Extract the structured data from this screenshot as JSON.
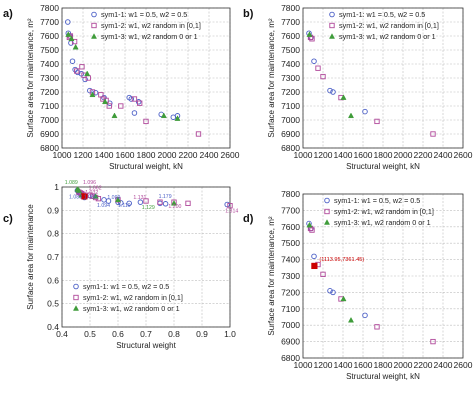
{
  "chart_data": [
    {
      "type": "scatter",
      "panel_label": "a)",
      "xlabel": "Structural weight, kN",
      "ylabel": "Surface area for maintenance, m²",
      "xlim": [
        1000,
        2600
      ],
      "ylim": [
        6800,
        7800
      ],
      "xticks": [
        "1000",
        "1200",
        "1400",
        "1600",
        "1800",
        "2000",
        "2200",
        "2400",
        "2600"
      ],
      "yticks": [
        "6800",
        "6900",
        "7000",
        "7100",
        "7200",
        "7300",
        "7400",
        "7500",
        "7600",
        "7700",
        "7800"
      ],
      "grid": true,
      "legend": "top-right",
      "series": [
        {
          "name": "sym1-1: w1 = 0.5, w2 = 0.5",
          "marker": "circle",
          "color": "#4a5ec6",
          "x": [
            1055,
            1060,
            1075,
            1085,
            1100,
            1125,
            1150,
            1185,
            1220,
            1265,
            1320,
            1400,
            1455,
            1640,
            1660,
            1690,
            1730,
            1945,
            2060,
            2100
          ],
          "y": [
            7700,
            7620,
            7600,
            7550,
            7420,
            7360,
            7340,
            7330,
            7290,
            7210,
            7195,
            7160,
            7120,
            7160,
            7150,
            7050,
            7130,
            7040,
            7020,
            7030
          ]
        },
        {
          "name": "sym1-2: w1, w2 random in [0,1]",
          "marker": "square",
          "color": "#b0489a",
          "x": [
            1070,
            1080,
            1120,
            1140,
            1190,
            1210,
            1250,
            1290,
            1370,
            1390,
            1420,
            1450,
            1560,
            1690,
            1740,
            1800,
            2300
          ],
          "y": [
            7590,
            7600,
            7560,
            7350,
            7380,
            7320,
            7300,
            7200,
            7180,
            7150,
            7140,
            7100,
            7100,
            7150,
            7120,
            6990,
            6900
          ]
        },
        {
          "name": "sym1-3: w1, w2 random 0 or 1",
          "marker": "triangle",
          "color": "#3f9c3a",
          "x": [
            1060,
            1090,
            1130,
            1240,
            1290,
            1410,
            1500,
            1970,
            2100
          ],
          "y": [
            7610,
            7580,
            7520,
            7330,
            7180,
            7130,
            7030,
            7030,
            7010
          ]
        }
      ]
    },
    {
      "type": "scatter",
      "panel_label": "b)",
      "xlabel": "Structural weight, kN",
      "ylabel": "Surface area for maintenance, m²",
      "xlim": [
        1000,
        2600
      ],
      "ylim": [
        6800,
        7800
      ],
      "xticks": [
        "1000",
        "1200",
        "1400",
        "1600",
        "1800",
        "2000",
        "2200",
        "2400",
        "2600"
      ],
      "yticks": [
        "6800",
        "6900",
        "7000",
        "7100",
        "7200",
        "7300",
        "7400",
        "7500",
        "7600",
        "7700",
        "7800"
      ],
      "grid": true,
      "legend": "top-right",
      "series": [
        {
          "name": "sym1-1: w1 = 0.5, w2 = 0.5",
          "marker": "circle",
          "color": "#4a5ec6",
          "x": [
            1060,
            1080,
            1110,
            1270,
            1300,
            1620
          ],
          "y": [
            7620,
            7590,
            7420,
            7210,
            7200,
            7060
          ]
        },
        {
          "name": "sym1-2: w1, w2 random in [0,1]",
          "marker": "square",
          "color": "#b0489a",
          "x": [
            1075,
            1090,
            1150,
            1200,
            1380,
            1740,
            2300
          ],
          "y": [
            7590,
            7580,
            7370,
            7310,
            7160,
            6990,
            6900
          ]
        },
        {
          "name": "sym1-3: w1, w2 random 0 or 1",
          "marker": "triangle",
          "color": "#3f9c3a",
          "x": [
            1065,
            1405,
            1480
          ],
          "y": [
            7610,
            7160,
            7030
          ]
        }
      ]
    },
    {
      "type": "scatter",
      "panel_label": "c)",
      "xlabel": "Structural weight",
      "ylabel": "Surface area for maintenance",
      "xlim": [
        0.4,
        1.0
      ],
      "ylim": [
        0.4,
        1.0
      ],
      "xticks": [
        "0.4",
        "0.5",
        "0.6",
        "0.7",
        "0.8",
        "0.9",
        "1.0"
      ],
      "yticks": [
        "0.4",
        "0.5",
        "0.6",
        "0.7",
        "0.8",
        "0.9",
        "1"
      ],
      "grid": true,
      "legend": "bottom-left",
      "series": [
        {
          "name": "sym1-1: w1 = 0.5, w2 = 0.5",
          "marker": "circle",
          "color": "#4a5ec6",
          "x": [
            0.455,
            0.458,
            0.46,
            0.462,
            0.468,
            0.475,
            0.48,
            0.55,
            0.566,
            0.6,
            0.61,
            0.64,
            0.68,
            0.75,
            0.77,
            0.99
          ],
          "y": [
            0.985,
            0.982,
            0.978,
            0.975,
            0.97,
            0.96,
            0.955,
            0.945,
            0.94,
            0.935,
            0.932,
            0.93,
            0.935,
            0.93,
            0.928,
            0.925
          ]
        },
        {
          "name": "sym1-2: w1, w2 random in [0,1]",
          "marker": "square",
          "color": "#b0489a",
          "x": [
            0.46,
            0.465,
            0.47,
            0.475,
            0.5,
            0.51,
            0.52,
            0.53,
            0.6,
            0.7,
            0.75,
            0.8,
            0.85,
            1.0
          ],
          "y": [
            0.978,
            0.975,
            0.972,
            0.968,
            0.965,
            0.96,
            0.955,
            0.95,
            0.945,
            0.94,
            0.935,
            0.935,
            0.93,
            0.92
          ]
        },
        {
          "name": "sym1-3: w1, w2 random 0 or 1",
          "marker": "triangle",
          "color": "#3f9c3a",
          "x": [
            0.455,
            0.46,
            0.47,
            0.52,
            0.6,
            0.8
          ],
          "y": [
            0.99,
            0.985,
            0.965,
            0.96,
            0.945,
            0.93
          ]
        }
      ],
      "highlight": {
        "x": 0.48,
        "y": 0.96,
        "color": "#cc0000"
      },
      "data_labels": [
        {
          "text": "1.089",
          "x": 0.41,
          "y": 1.012,
          "color": "#3f9c3a"
        },
        {
          "text": "1.096",
          "x": 0.475,
          "y": 1.012,
          "color": "#b0489a"
        },
        {
          "text": "1.062",
          "x": 0.495,
          "y": 0.99,
          "color": "#b0489a"
        },
        {
          "text": "1.032",
          "x": 0.483,
          "y": 0.97,
          "color": "#b0489a"
        },
        {
          "text": "1.083",
          "x": 0.425,
          "y": 0.95,
          "color": "#4a5ec6"
        },
        {
          "text": "1.065",
          "x": 0.478,
          "y": 0.95,
          "color": "#4a5ec6"
        },
        {
          "text": "1.099",
          "x": 0.562,
          "y": 0.948,
          "color": "#4a5ec6"
        },
        {
          "text": "1.131",
          "x": 0.655,
          "y": 0.948,
          "color": "#b0489a"
        },
        {
          "text": "1.179",
          "x": 0.745,
          "y": 0.953,
          "color": "#4a5ec6"
        },
        {
          "text": "1.094",
          "x": 0.525,
          "y": 0.915,
          "color": "#4a5ec6"
        },
        {
          "text": "1.119",
          "x": 0.6,
          "y": 0.915,
          "color": "#4a5ec6"
        },
        {
          "text": "1.129",
          "x": 0.685,
          "y": 0.905,
          "color": "#3f9c3a"
        },
        {
          "text": "1.200",
          "x": 0.78,
          "y": 0.91,
          "color": "#b0489a"
        },
        {
          "text": "1.314",
          "x": 0.983,
          "y": 0.89,
          "color": "#b0489a"
        }
      ]
    },
    {
      "type": "scatter",
      "panel_label": "d)",
      "xlabel": "Structural weight, kN",
      "ylabel": "Surface area for maintenance, m²",
      "xlim": [
        1000,
        2600
      ],
      "ylim": [
        6800,
        7800
      ],
      "xticks": [
        "1000",
        "1200",
        "1400",
        "1600",
        "1800",
        "2000",
        "2200",
        "2400",
        "2600"
      ],
      "yticks": [
        "6800",
        "6900",
        "7000",
        "7100",
        "7200",
        "7300",
        "7400",
        "7500",
        "7600",
        "7700",
        "7800"
      ],
      "grid": true,
      "legend": "top-right",
      "series": [
        {
          "name": "sym1-1: w1 = 0.5, w2 = 0.5",
          "marker": "circle",
          "color": "#4a5ec6",
          "x": [
            1060,
            1080,
            1110,
            1270,
            1300,
            1620
          ],
          "y": [
            7620,
            7590,
            7420,
            7210,
            7200,
            7060
          ]
        },
        {
          "name": "sym1-2: w1, w2 random in [0,1]",
          "marker": "square",
          "color": "#b0489a",
          "x": [
            1075,
            1090,
            1150,
            1200,
            1380,
            1740,
            2300
          ],
          "y": [
            7590,
            7580,
            7370,
            7310,
            7160,
            6990,
            6900
          ]
        },
        {
          "name": "sym1-3: w1, w2 random 0 or 1",
          "marker": "triangle",
          "color": "#3f9c3a",
          "x": [
            1065,
            1405,
            1480
          ],
          "y": [
            7610,
            7160,
            7030
          ]
        }
      ],
      "highlight": {
        "x": 1113.95,
        "y": 7361.45,
        "color": "#cc0000",
        "label": "(1113.95,7361.45)"
      }
    }
  ]
}
